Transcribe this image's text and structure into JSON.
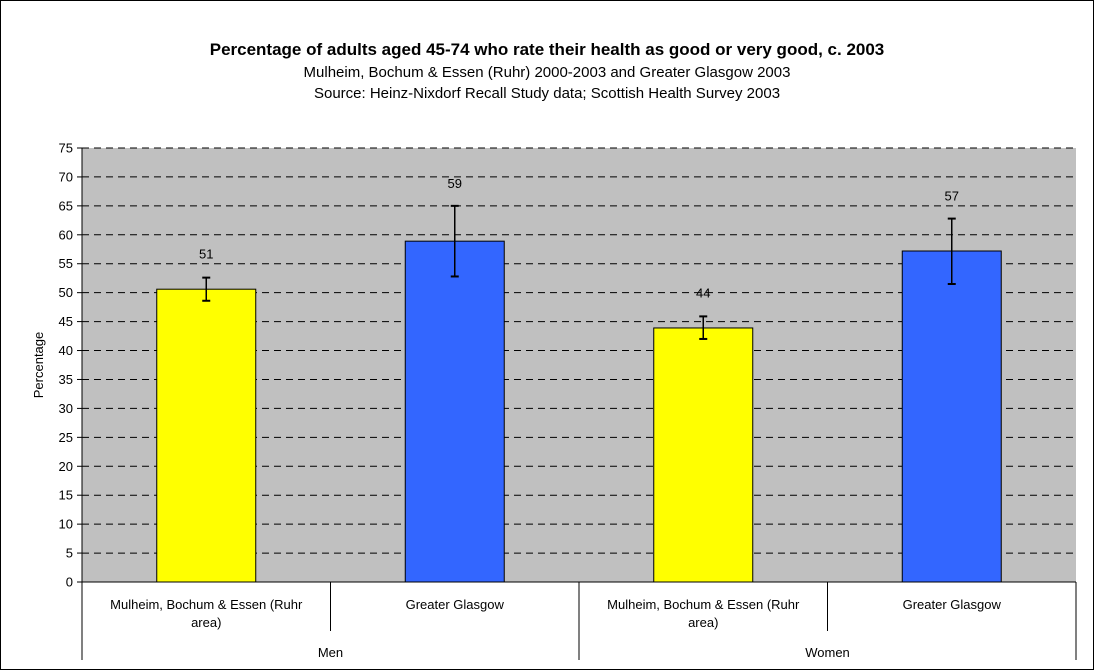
{
  "chart_data": {
    "type": "bar",
    "title": "Percentage of adults aged 45-74 who rate their health as good or very good, c. 2003",
    "subtitle": "Mulheim, Bochum & Essen (Ruhr) 2000-2003 and Greater Glasgow 2003",
    "source": "Source: Heinz-Nixdorf Recall Study data; Scottish Health Survey 2003",
    "ylabel": "Percentage",
    "xlabel": "",
    "ylim": [
      0,
      75
    ],
    "ytick_step": 5,
    "grid": true,
    "grid_style": "dashed",
    "plot_background": "#c0c0c0",
    "groups": [
      "Men",
      "Women"
    ],
    "categories": [
      {
        "group": "Men",
        "label_lines": [
          "Mulheim, Bochum & Essen (Ruhr",
          "area)"
        ],
        "value": 50.6,
        "data_label": "51",
        "error_low": 48.6,
        "error_high": 52.6,
        "color": "#ffff00"
      },
      {
        "group": "Men",
        "label_lines": [
          "Greater Glasgow"
        ],
        "value": 58.9,
        "data_label": "59",
        "error_low": 52.8,
        "error_high": 65.0,
        "color": "#3366ff"
      },
      {
        "group": "Women",
        "label_lines": [
          "Mulheim, Bochum & Essen (Ruhr",
          "area)"
        ],
        "value": 43.9,
        "data_label": "44",
        "error_low": 42.0,
        "error_high": 45.9,
        "color": "#ffff00"
      },
      {
        "group": "Women",
        "label_lines": [
          "Greater Glasgow"
        ],
        "value": 57.2,
        "data_label": "57",
        "error_low": 51.5,
        "error_high": 62.8,
        "color": "#3366ff"
      }
    ]
  }
}
